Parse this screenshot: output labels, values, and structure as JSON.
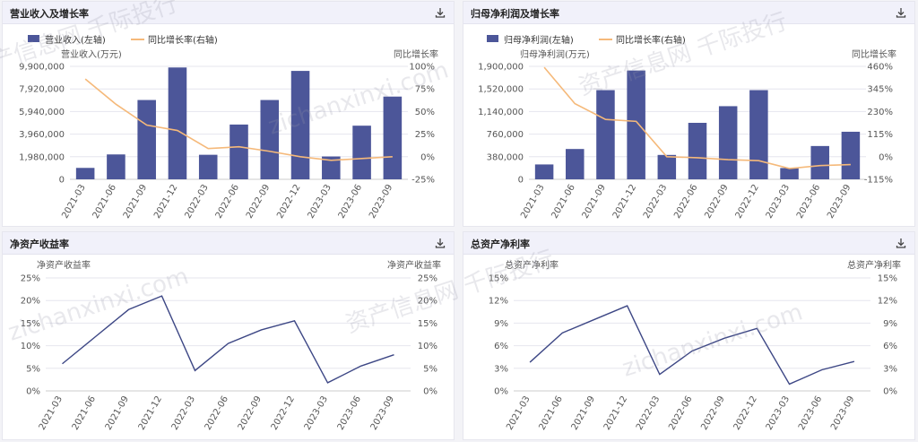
{
  "colors": {
    "bar": "#4c5699",
    "growth": "#f5b97a",
    "line": "#3d4785",
    "axis_text": "#555555",
    "grid": "#e6e6ee"
  },
  "icons": {
    "download": "download-icon"
  },
  "watermark": {
    "text_cn": "资产信息网 千际投行",
    "text_en": "zichanxinxi.com"
  },
  "charts": [
    {
      "id": "revenue",
      "title": "营业收入及增长率",
      "legend": [
        {
          "label": "营业收入(左轴)",
          "kind": "bar"
        },
        {
          "label": "同比增长率(右轴)",
          "kind": "line"
        }
      ],
      "chart_data": {
        "type": "bar+line",
        "categories": [
          "2021-03",
          "2021-06",
          "2021-09",
          "2021-12",
          "2022-03",
          "2022-06",
          "2022-09",
          "2022-12",
          "2023-03",
          "2023-06",
          "2023-09"
        ],
        "series": [
          {
            "name": "营业收入(左轴)",
            "type": "bar",
            "axis": "left",
            "values": [
              1000000,
              2180000,
              6950000,
              9800000,
              2150000,
              4800000,
              6950000,
              9500000,
              2000000,
              4700000,
              7250000
            ]
          },
          {
            "name": "同比增长率(右轴)",
            "type": "line",
            "axis": "right",
            "values": [
              86,
              58,
              35,
              29,
              9,
              11,
              6,
              0,
              -4,
              -2,
              0
            ]
          }
        ],
        "ylabel_left": "营业收入(万元)",
        "ylabel_right": "同比增长率",
        "yticks_left": [
          "0",
          "1,980,000",
          "3,960,000",
          "5,940,000",
          "7,920,000",
          "9,900,000"
        ],
        "yticks_right": [
          "-25%",
          "0%",
          "25%",
          "50%",
          "75%",
          "100%"
        ],
        "ylim_left": [
          0,
          9900000
        ],
        "ylim_right": [
          -25,
          100
        ]
      }
    },
    {
      "id": "profit",
      "title": "归母净利润及增长率",
      "legend": [
        {
          "label": "归母净利润(左轴)",
          "kind": "bar"
        },
        {
          "label": "同比增长率(右轴)",
          "kind": "line"
        }
      ],
      "chart_data": {
        "type": "bar+line",
        "categories": [
          "2021-03",
          "2021-06",
          "2021-09",
          "2021-12",
          "2022-03",
          "2022-06",
          "2022-09",
          "2022-12",
          "2023-03",
          "2023-06",
          "2023-09"
        ],
        "series": [
          {
            "name": "归母净利润(左轴)",
            "type": "bar",
            "axis": "left",
            "values": [
              250000,
              510000,
              1500000,
              1830000,
              410000,
              950000,
              1230000,
              1500000,
              190000,
              560000,
              800000
            ]
          },
          {
            "name": "同比增长率(右轴)",
            "type": "line",
            "axis": "right",
            "values": [
              455,
              270,
              190,
              180,
              0,
              -5,
              -15,
              -20,
              -60,
              -45,
              -40
            ]
          }
        ],
        "ylabel_left": "归母净利润(万元)",
        "ylabel_right": "同比增长率",
        "yticks_left": [
          "0",
          "380,000",
          "760,000",
          "1,140,000",
          "1,520,000",
          "1,900,000"
        ],
        "yticks_right": [
          "-115%",
          "0%",
          "115%",
          "230%",
          "345%",
          "460%"
        ],
        "ylim_left": [
          0,
          1900000
        ],
        "ylim_right": [
          -115,
          460
        ]
      }
    },
    {
      "id": "roe",
      "title": "净资产收益率",
      "chart_data": {
        "type": "line",
        "categories": [
          "2021-03",
          "2021-06",
          "2021-09",
          "2021-12",
          "2022-03",
          "2022-06",
          "2022-09",
          "2022-12",
          "2023-03",
          "2023-06",
          "2023-09"
        ],
        "series": [
          {
            "name": "净资产收益率",
            "values": [
              6.0,
              12.0,
              18.0,
              21.0,
              4.5,
              10.5,
              13.5,
              15.5,
              1.8,
              5.5,
              8.0
            ]
          }
        ],
        "ylabel_left": "净资产收益率",
        "ylabel_right": "净资产收益率",
        "yticks_left": [
          "0%",
          "5%",
          "10%",
          "15%",
          "20%",
          "25%"
        ],
        "yticks_right": [
          "0%",
          "5%",
          "10%",
          "15%",
          "20%",
          "25%"
        ],
        "ylim": [
          0,
          25
        ]
      }
    },
    {
      "id": "roa",
      "title": "总资产净利率",
      "chart_data": {
        "type": "line",
        "categories": [
          "2021-03",
          "2021-06",
          "2021-09",
          "2021-12",
          "2022-03",
          "2022-06",
          "2022-09",
          "2022-12",
          "2023-03",
          "2023-06",
          "2023-09"
        ],
        "series": [
          {
            "name": "总资产净利率",
            "values": [
              3.8,
              7.7,
              9.5,
              11.3,
              2.2,
              5.3,
              7.0,
              8.3,
              0.9,
              2.8,
              3.9
            ]
          }
        ],
        "ylabel_left": "总资产净利率",
        "ylabel_right": "总资产净利率",
        "yticks_left": [
          "0%",
          "3%",
          "6%",
          "9%",
          "12%",
          "15%"
        ],
        "yticks_right": [
          "0%",
          "3%",
          "6%",
          "9%",
          "12%",
          "15%"
        ],
        "ylim": [
          0,
          15
        ]
      }
    }
  ]
}
